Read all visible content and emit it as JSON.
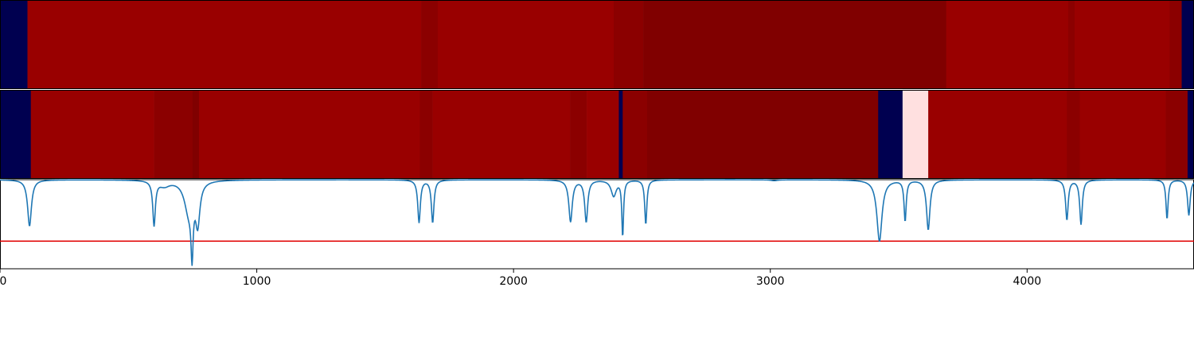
{
  "chart_data": {
    "type": "heatmap",
    "x_range": [
      0,
      4650
    ],
    "x_ticks": [
      0,
      1000,
      2000,
      3000,
      4000
    ],
    "x_tick_labels": [
      "0",
      "1000",
      "2000",
      "3000",
      "4000"
    ],
    "colors": {
      "navy": "#000050",
      "red": "#990000",
      "dark_red": "#8b0000",
      "maroon": "#800000",
      "pink": "#ffe0e0",
      "line": "#1f77b4",
      "threshold": "#e00000"
    },
    "tracks": [
      {
        "segments": [
          {
            "start": 0,
            "end": 107,
            "color": "navy"
          },
          {
            "start": 107,
            "end": 1640,
            "color": "red"
          },
          {
            "start": 1640,
            "end": 1705,
            "color": "dark_red"
          },
          {
            "start": 1705,
            "end": 2390,
            "color": "red"
          },
          {
            "start": 2390,
            "end": 2505,
            "color": "dark_red"
          },
          {
            "start": 2505,
            "end": 3685,
            "color": "maroon"
          },
          {
            "start": 3685,
            "end": 4160,
            "color": "red"
          },
          {
            "start": 4160,
            "end": 4185,
            "color": "dark_red"
          },
          {
            "start": 4185,
            "end": 4555,
            "color": "red"
          },
          {
            "start": 4555,
            "end": 4602,
            "color": "dark_red"
          },
          {
            "start": 4602,
            "end": 4650,
            "color": "navy"
          }
        ]
      },
      {
        "segments": [
          {
            "start": 0,
            "end": 120,
            "color": "navy"
          },
          {
            "start": 120,
            "end": 600,
            "color": "red"
          },
          {
            "start": 600,
            "end": 750,
            "color": "dark_red"
          },
          {
            "start": 750,
            "end": 775,
            "color": "maroon"
          },
          {
            "start": 775,
            "end": 1635,
            "color": "red"
          },
          {
            "start": 1635,
            "end": 1685,
            "color": "dark_red"
          },
          {
            "start": 1685,
            "end": 2220,
            "color": "red"
          },
          {
            "start": 2220,
            "end": 2285,
            "color": "dark_red"
          },
          {
            "start": 2285,
            "end": 2410,
            "color": "red"
          },
          {
            "start": 2410,
            "end": 2425,
            "color": "navy"
          },
          {
            "start": 2425,
            "end": 2520,
            "color": "dark_red"
          },
          {
            "start": 2520,
            "end": 3420,
            "color": "maroon"
          },
          {
            "start": 3420,
            "end": 3515,
            "color": "navy"
          },
          {
            "start": 3515,
            "end": 3615,
            "color": "pink"
          },
          {
            "start": 3615,
            "end": 4155,
            "color": "red"
          },
          {
            "start": 4155,
            "end": 4205,
            "color": "dark_red"
          },
          {
            "start": 4205,
            "end": 4540,
            "color": "red"
          },
          {
            "start": 4540,
            "end": 4625,
            "color": "dark_red"
          },
          {
            "start": 4625,
            "end": 4650,
            "color": "navy"
          }
        ]
      }
    ],
    "line_series": {
      "ylim": [
        0,
        1
      ],
      "baseline": 1.0,
      "threshold": 0.31,
      "dips": [
        {
          "x": 115,
          "depth": 0.52,
          "width": 9
        },
        {
          "x": 600,
          "depth": 0.5,
          "width": 6
        },
        {
          "x": 640,
          "depth": 0.06,
          "width": 25
        },
        {
          "x": 748,
          "depth": 0.64,
          "width": 5
        },
        {
          "x": 735,
          "depth": 0.35,
          "width": 20
        },
        {
          "x": 770,
          "depth": 0.45,
          "width": 10
        },
        {
          "x": 1632,
          "depth": 0.48,
          "width": 6
        },
        {
          "x": 1685,
          "depth": 0.48,
          "width": 6
        },
        {
          "x": 2222,
          "depth": 0.47,
          "width": 8
        },
        {
          "x": 2283,
          "depth": 0.47,
          "width": 7
        },
        {
          "x": 2390,
          "depth": 0.18,
          "width": 12
        },
        {
          "x": 2425,
          "depth": 0.63,
          "width": 4
        },
        {
          "x": 2515,
          "depth": 0.5,
          "width": 5
        },
        {
          "x": 3015,
          "depth": 0.01,
          "width": 15
        },
        {
          "x": 3425,
          "depth": 0.69,
          "width": 12
        },
        {
          "x": 3525,
          "depth": 0.46,
          "width": 5
        },
        {
          "x": 3615,
          "depth": 0.56,
          "width": 8
        },
        {
          "x": 4155,
          "depth": 0.45,
          "width": 6
        },
        {
          "x": 4210,
          "depth": 0.5,
          "width": 6
        },
        {
          "x": 4545,
          "depth": 0.44,
          "width": 5
        },
        {
          "x": 4630,
          "depth": 0.4,
          "width": 6
        }
      ]
    }
  }
}
